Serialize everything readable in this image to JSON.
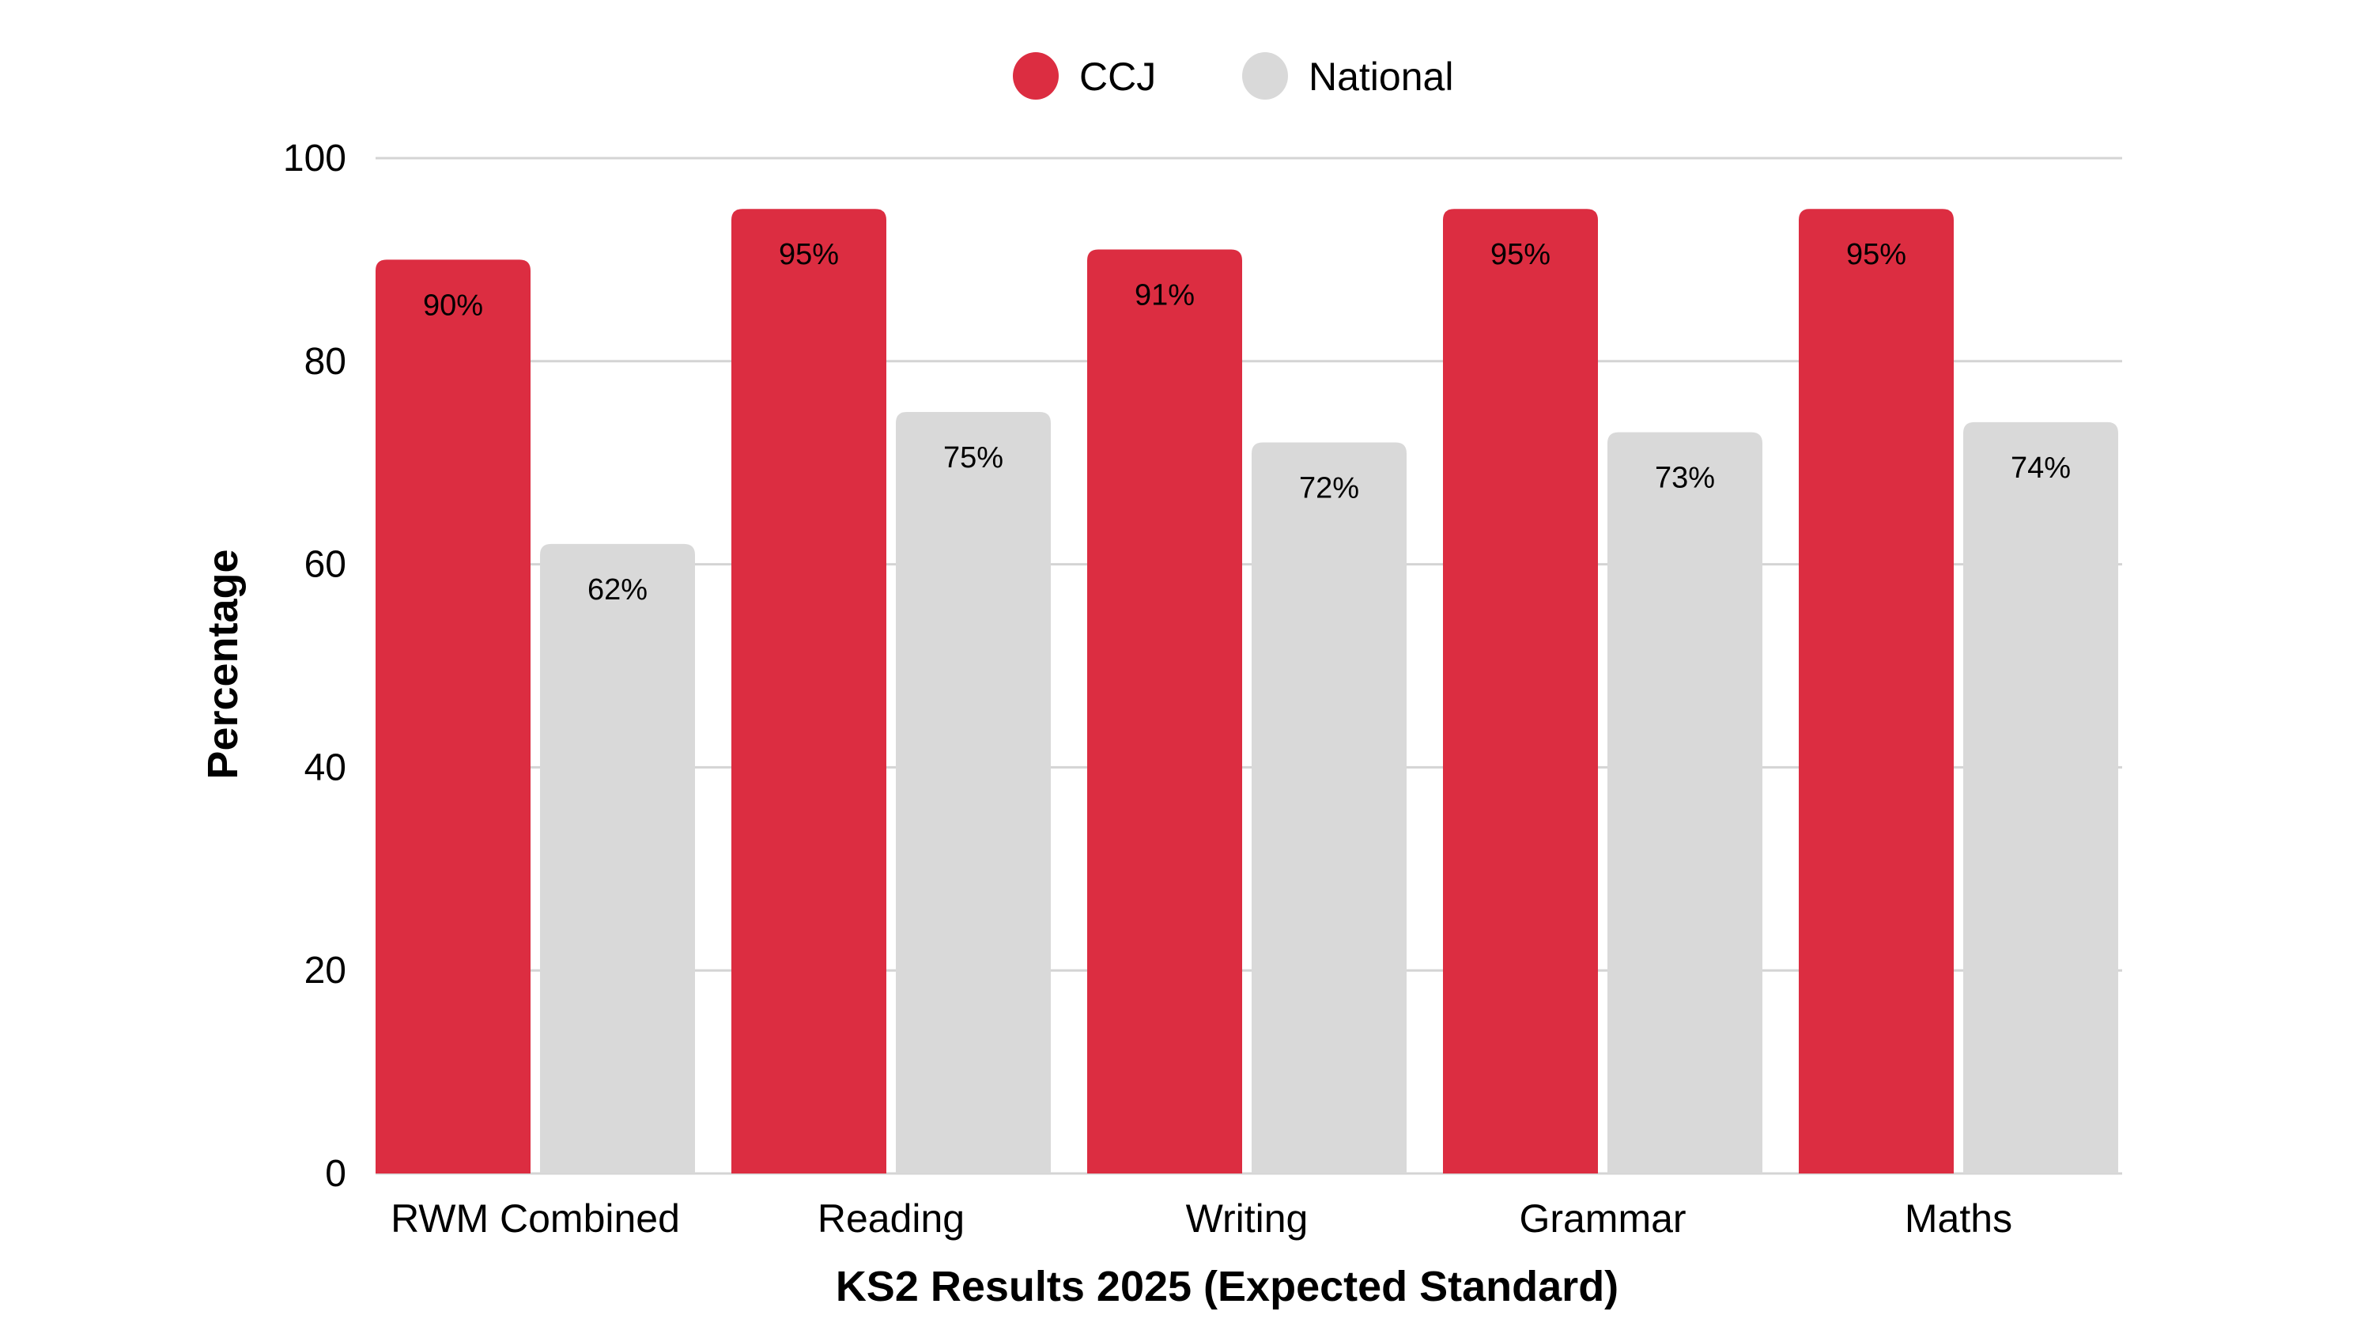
{
  "chart_data": {
    "type": "bar",
    "title": "",
    "xlabel": "KS2 Results 2025 (Expected Standard)",
    "ylabel": "Percentage",
    "ylim": [
      0,
      100
    ],
    "yticks": [
      "0",
      "20",
      "40",
      "60",
      "80",
      "100"
    ],
    "grid": true,
    "legend_position": "top-center",
    "categories": [
      "RWM Combined",
      "Reading",
      "Writing",
      "Grammar",
      "Maths"
    ],
    "series": [
      {
        "name": "CCJ",
        "color": "#dc2d41",
        "values": [
          90,
          95,
          91,
          95,
          95
        ],
        "labels": [
          "90%",
          "95%",
          "91%",
          "95%",
          "95%"
        ]
      },
      {
        "name": "National",
        "color": "#d9d9d9",
        "values": [
          62,
          75,
          72,
          73,
          74
        ],
        "labels": [
          "62%",
          "75%",
          "72%",
          "73%",
          "74%"
        ]
      }
    ]
  }
}
